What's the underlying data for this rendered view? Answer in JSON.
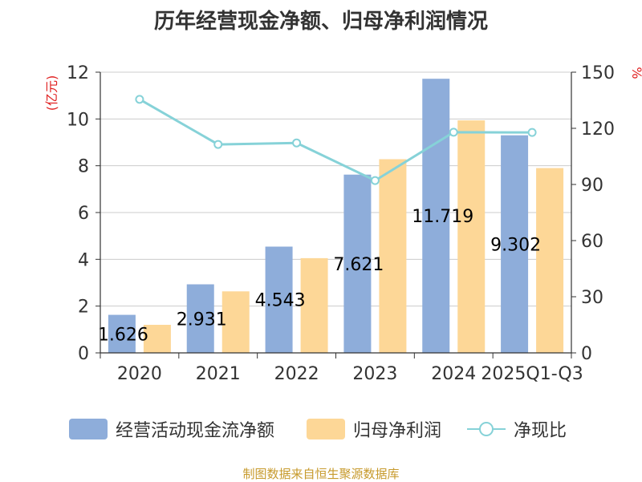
{
  "chart_data": {
    "type": "bar",
    "title": "历年经营现金净额、归母净利润情况",
    "categories": [
      "2020",
      "2021",
      "2022",
      "2023",
      "2024",
      "2025Q1-Q3"
    ],
    "series": [
      {
        "name": "经营活动现金流净额",
        "type": "bar",
        "axis": "left",
        "color": "#8eadda",
        "values": [
          1.626,
          2.931,
          4.543,
          7.621,
          11.719,
          9.302
        ],
        "labels": [
          "1.626",
          "2.931",
          "4.543",
          "7.621",
          "11.719",
          "9.302"
        ]
      },
      {
        "name": "归母净利润",
        "type": "bar",
        "axis": "left",
        "color": "#fdd797",
        "values": [
          1.2,
          2.63,
          4.05,
          8.28,
          9.94,
          7.9
        ]
      },
      {
        "name": "净现比",
        "type": "line",
        "axis": "right",
        "color": "#86d2d8",
        "values": [
          135.5,
          111.4,
          112.2,
          92.1,
          117.9,
          117.8
        ]
      }
    ],
    "ylabel": "(亿元)",
    "y2label": "%",
    "ylim": [
      0,
      12
    ],
    "y2lim": [
      0,
      150
    ],
    "yticks": [
      "0",
      "2",
      "4",
      "6",
      "8",
      "10",
      "12"
    ],
    "y2ticks": [
      "0",
      "30",
      "60",
      "90",
      "120",
      "150"
    ],
    "grid": true,
    "legend_position": "bottom"
  },
  "source_note": "制图数据来自恒生聚源数据库"
}
